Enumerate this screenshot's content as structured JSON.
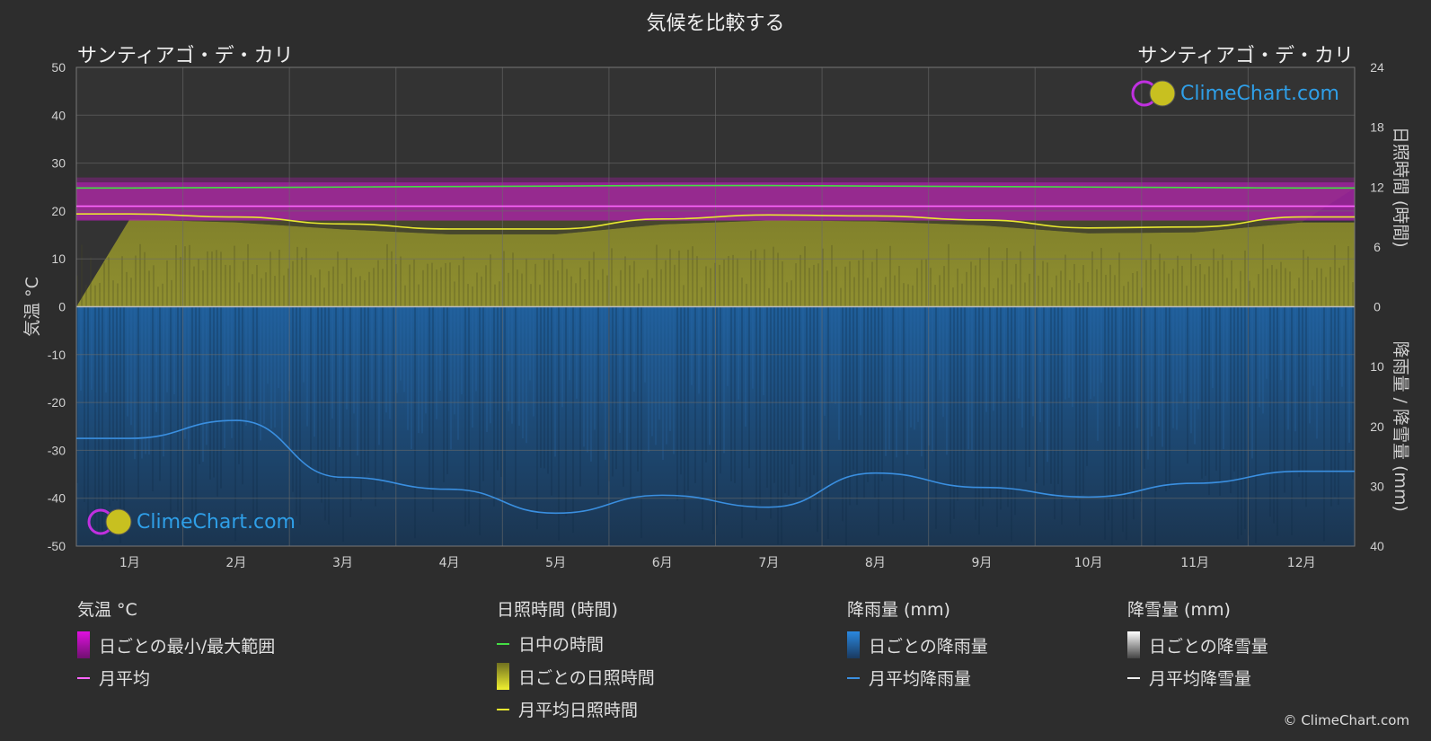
{
  "title": "気候を比較する",
  "city_left": "サンティアゴ・デ・カリ",
  "city_right": "サンティアゴ・デ・カリ",
  "logo_text": "ClimeChart.com",
  "copyright": "© ClimeChart.com",
  "chart_data": {
    "type": "area",
    "months": [
      "1月",
      "2月",
      "3月",
      "4月",
      "5月",
      "6月",
      "7月",
      "8月",
      "9月",
      "10月",
      "11月",
      "12月"
    ],
    "y_left": {
      "label": "気温 °C",
      "range": [
        -50,
        50
      ],
      "ticks": [
        50,
        40,
        30,
        20,
        10,
        0,
        -10,
        -20,
        -30,
        -40,
        -50
      ]
    },
    "y_right_top": {
      "label": "日照時間 (時間)",
      "range": [
        0,
        24
      ],
      "ticks": [
        24,
        18,
        12,
        6,
        0
      ]
    },
    "y_right_bottom": {
      "label": "降雨量 / 降雪量 (mm)",
      "range": [
        0,
        40
      ],
      "ticks": [
        10,
        20,
        30,
        40
      ]
    },
    "series": [
      {
        "name": "日中の時間",
        "color": "#44dd44",
        "unit": "hours",
        "values": [
          11.9,
          11.95,
          12.0,
          12.05,
          12.1,
          12.15,
          12.15,
          12.1,
          12.05,
          12.0,
          11.95,
          11.9
        ]
      },
      {
        "name": "月平均日照時間",
        "color": "#e8e830",
        "unit": "hours",
        "values": [
          9.3,
          9.0,
          8.3,
          7.8,
          7.8,
          8.8,
          9.2,
          9.1,
          8.7,
          7.9,
          8.0,
          9.0
        ]
      },
      {
        "name": "月平均",
        "color": "#ff66ff",
        "unit": "°C",
        "values": [
          21,
          21,
          21,
          21,
          21,
          21,
          21,
          21,
          21,
          21,
          21,
          21
        ]
      },
      {
        "name": "月平均降雨量",
        "color": "#3a8fe0",
        "unit": "mm",
        "values": [
          22,
          19,
          28.5,
          30.5,
          34.5,
          31.5,
          33.5,
          27.8,
          30.2,
          31.8,
          29.5,
          27.5
        ]
      }
    ],
    "daily_temp_range": {
      "min": 18,
      "max": 26
    }
  },
  "legend": {
    "temp": {
      "heading": "気温 °C",
      "items": [
        "日ごとの最小/最大範囲",
        "月平均"
      ],
      "colors": [
        "#e010e0",
        "#ff66ff"
      ]
    },
    "sun": {
      "heading": "日照時間 (時間)",
      "items": [
        "日中の時間",
        "日ごとの日照時間",
        "月平均日照時間"
      ],
      "colors": [
        "#44dd44",
        "#d8d830",
        "#e8e830"
      ]
    },
    "rain": {
      "heading": "降雨量 (mm)",
      "items": [
        "日ごとの降雨量",
        "月平均降雨量"
      ],
      "colors": [
        "#2a88e0",
        "#3a8fe0"
      ]
    },
    "snow": {
      "heading": "降雪量 (mm)",
      "items": [
        "日ごとの降雪量",
        "月平均降雪量"
      ],
      "colors": [
        "#d8d8d8",
        "#eeeeee"
      ]
    }
  }
}
